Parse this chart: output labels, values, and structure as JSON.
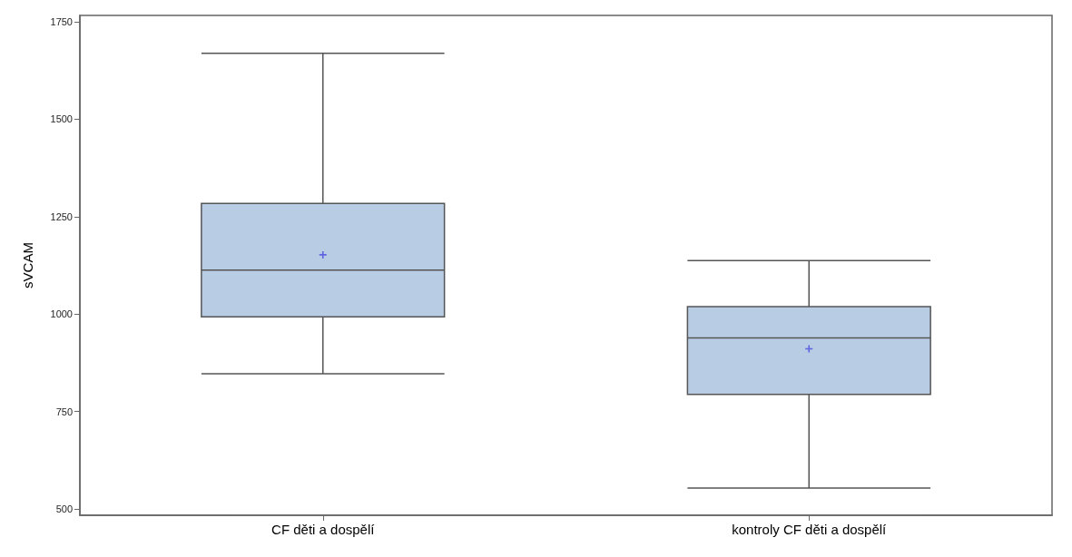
{
  "chart_data": {
    "type": "box",
    "ylabel": "sVCAM",
    "categories": [
      "CF děti a dospělí",
      "kontroly CF děti a dospělí"
    ],
    "series": [
      {
        "color": "#b8cce4",
        "boxes": [
          {
            "low": 847,
            "q1": 993,
            "median": 1113,
            "q3": 1284,
            "high": 1669,
            "mean": 1152
          },
          {
            "low": 554,
            "q1": 794,
            "median": 939,
            "q3": 1019,
            "high": 1137,
            "mean": 911
          }
        ]
      }
    ],
    "ylim": [
      484,
      1766
    ],
    "yticks": [
      500,
      750,
      1000,
      1250,
      1500,
      1750
    ],
    "grid": false,
    "marker": "cross"
  }
}
